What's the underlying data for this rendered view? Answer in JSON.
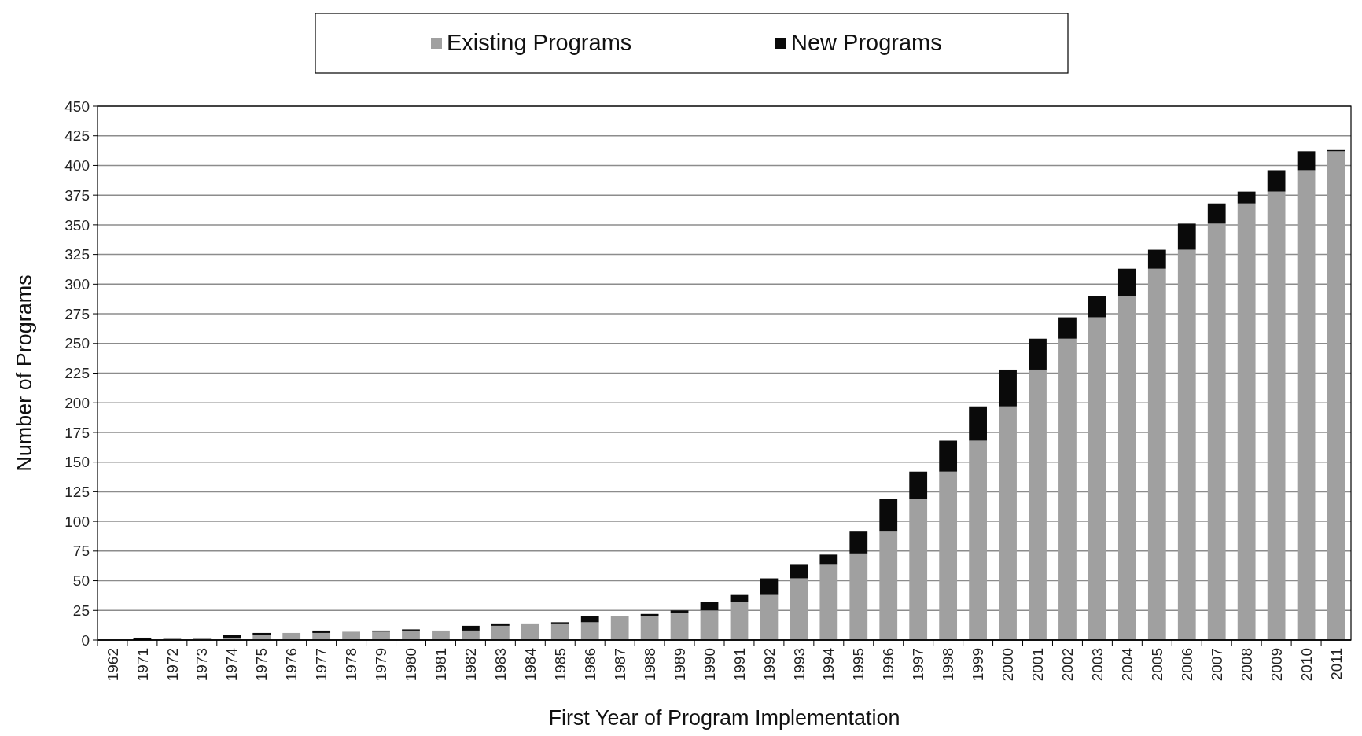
{
  "chart_data": {
    "type": "bar",
    "stacked": true,
    "xlabel": "First Year of Program Implementation",
    "ylabel": "Number of Programs",
    "categories": [
      "1962",
      "1971",
      "1972",
      "1973",
      "1974",
      "1975",
      "1976",
      "1977",
      "1978",
      "1979",
      "1980",
      "1981",
      "1982",
      "1983",
      "1984",
      "1985",
      "1986",
      "1987",
      "1988",
      "1989",
      "1990",
      "1991",
      "1992",
      "1993",
      "1994",
      "1995",
      "1996",
      "1997",
      "1998",
      "1999",
      "2000",
      "2001",
      "2002",
      "2003",
      "2004",
      "2005",
      "2006",
      "2007",
      "2008",
      "2009",
      "2010",
      "2011"
    ],
    "series": [
      {
        "name": "Existing Programs",
        "color": "#a0a0a0",
        "values": [
          0,
          0,
          2,
          2,
          2,
          4,
          6,
          6,
          7,
          7,
          8,
          8,
          8,
          12,
          14,
          14,
          15,
          20,
          20,
          23,
          25,
          32,
          38,
          52,
          64,
          73,
          92,
          119,
          142,
          168,
          197,
          228,
          254,
          272,
          290,
          313,
          329,
          351,
          368,
          378,
          396,
          412
        ]
      },
      {
        "name": "New Programs",
        "color": "#0a0a0a",
        "values": [
          0,
          2,
          0,
          0,
          2,
          2,
          0,
          2,
          0,
          1,
          1,
          0,
          4,
          2,
          0,
          1,
          5,
          0,
          2,
          2,
          7,
          6,
          14,
          12,
          8,
          19,
          27,
          23,
          26,
          29,
          31,
          26,
          18,
          18,
          23,
          16,
          22,
          17,
          10,
          18,
          16,
          1
        ]
      }
    ],
    "ylim": [
      0,
      450
    ],
    "yticks": [
      0,
      25,
      50,
      75,
      100,
      125,
      150,
      175,
      200,
      225,
      250,
      275,
      300,
      325,
      350,
      375,
      400,
      425,
      450
    ],
    "grid": "y",
    "legend": "top"
  }
}
